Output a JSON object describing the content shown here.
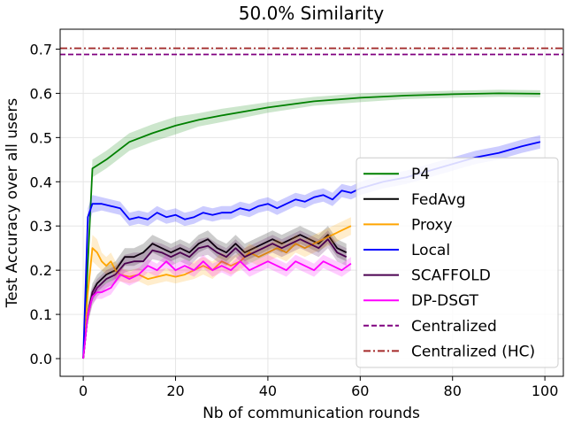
{
  "chart_data": {
    "type": "line",
    "title": "50.0% Similarity",
    "xlabel": "Nb of communication rounds",
    "ylabel": "Test Accuracy over all users",
    "xlim": [
      -5,
      104
    ],
    "ylim": [
      -0.04,
      0.745
    ],
    "xticks": [
      0,
      20,
      40,
      60,
      80,
      100
    ],
    "yticks": [
      0.0,
      0.1,
      0.2,
      0.3,
      0.4,
      0.5,
      0.6,
      0.7
    ],
    "ytick_labels": [
      "0.0",
      "0.1",
      "0.2",
      "0.3",
      "0.4",
      "0.5",
      "0.6",
      "0.7"
    ],
    "grid": true,
    "legend_position": "bottom-right",
    "series": [
      {
        "name": "P4",
        "color": "#008000",
        "style": "solid",
        "x": [
          0,
          2,
          5,
          10,
          15,
          20,
          25,
          30,
          40,
          50,
          60,
          70,
          80,
          90,
          99
        ],
        "values": [
          0.0,
          0.43,
          0.45,
          0.49,
          0.51,
          0.527,
          0.54,
          0.55,
          0.568,
          0.582,
          0.59,
          0.595,
          0.598,
          0.6,
          0.599
        ],
        "band": [
          0.0,
          0.02,
          0.02,
          0.02,
          0.02,
          0.02,
          0.015,
          0.015,
          0.012,
          0.01,
          0.01,
          0.008,
          0.008,
          0.008,
          0.008
        ]
      },
      {
        "name": "FedAvg",
        "color": "#000000",
        "style": "solid",
        "x": [
          0,
          1,
          2,
          3,
          5,
          7,
          9,
          11,
          13,
          15,
          17,
          19,
          21,
          23,
          25,
          27,
          29,
          31,
          33,
          35,
          37,
          39,
          41,
          43,
          45,
          47,
          49,
          51,
          53,
          55,
          57
        ],
        "values": [
          0.0,
          0.1,
          0.15,
          0.17,
          0.19,
          0.2,
          0.23,
          0.23,
          0.24,
          0.26,
          0.25,
          0.24,
          0.25,
          0.24,
          0.26,
          0.27,
          0.25,
          0.24,
          0.26,
          0.24,
          0.25,
          0.26,
          0.27,
          0.26,
          0.27,
          0.28,
          0.27,
          0.26,
          0.28,
          0.25,
          0.24
        ],
        "band": [
          0.0,
          0.02,
          0.02,
          0.02,
          0.02,
          0.02,
          0.02,
          0.02,
          0.02,
          0.02,
          0.02,
          0.02,
          0.02,
          0.02,
          0.02,
          0.02,
          0.02,
          0.02,
          0.02,
          0.02,
          0.02,
          0.02,
          0.02,
          0.02,
          0.02,
          0.02,
          0.02,
          0.02,
          0.02,
          0.02,
          0.02
        ]
      },
      {
        "name": "Proxy",
        "color": "#ffa500",
        "style": "solid",
        "x": [
          0,
          1,
          2,
          3,
          4,
          5,
          6,
          7,
          8,
          10,
          12,
          14,
          16,
          18,
          20,
          22,
          24,
          26,
          28,
          30,
          32,
          34,
          36,
          38,
          40,
          42,
          44,
          46,
          48,
          50,
          52,
          54,
          56,
          58
        ],
        "values": [
          0.0,
          0.15,
          0.25,
          0.24,
          0.22,
          0.21,
          0.22,
          0.2,
          0.19,
          0.185,
          0.19,
          0.18,
          0.185,
          0.19,
          0.185,
          0.19,
          0.2,
          0.21,
          0.2,
          0.22,
          0.21,
          0.22,
          0.24,
          0.23,
          0.24,
          0.25,
          0.24,
          0.26,
          0.25,
          0.26,
          0.27,
          0.28,
          0.29,
          0.3
        ],
        "band": [
          0.0,
          0.02,
          0.03,
          0.03,
          0.02,
          0.02,
          0.02,
          0.02,
          0.015,
          0.015,
          0.015,
          0.015,
          0.015,
          0.015,
          0.015,
          0.015,
          0.02,
          0.02,
          0.02,
          0.02,
          0.02,
          0.02,
          0.02,
          0.02,
          0.02,
          0.02,
          0.02,
          0.02,
          0.02,
          0.02,
          0.02,
          0.02,
          0.02,
          0.02
        ]
      },
      {
        "name": "Local",
        "color": "#0000ff",
        "style": "solid",
        "x": [
          0,
          1,
          2,
          4,
          6,
          8,
          10,
          12,
          14,
          16,
          18,
          20,
          22,
          24,
          26,
          28,
          30,
          32,
          34,
          36,
          38,
          40,
          42,
          44,
          46,
          48,
          50,
          52,
          54,
          56,
          58,
          60,
          65,
          70,
          75,
          80,
          85,
          90,
          95,
          99
        ],
        "values": [
          0.0,
          0.32,
          0.35,
          0.35,
          0.345,
          0.34,
          0.315,
          0.32,
          0.315,
          0.33,
          0.32,
          0.325,
          0.315,
          0.32,
          0.33,
          0.325,
          0.33,
          0.33,
          0.34,
          0.335,
          0.345,
          0.35,
          0.34,
          0.35,
          0.36,
          0.355,
          0.365,
          0.37,
          0.36,
          0.38,
          0.375,
          0.385,
          0.4,
          0.41,
          0.425,
          0.44,
          0.455,
          0.465,
          0.48,
          0.49
        ],
        "band": [
          0.0,
          0.02,
          0.02,
          0.015,
          0.015,
          0.015,
          0.015,
          0.015,
          0.015,
          0.015,
          0.015,
          0.015,
          0.015,
          0.015,
          0.015,
          0.015,
          0.015,
          0.015,
          0.015,
          0.015,
          0.015,
          0.015,
          0.015,
          0.015,
          0.015,
          0.015,
          0.015,
          0.015,
          0.015,
          0.015,
          0.015,
          0.015,
          0.015,
          0.015,
          0.015,
          0.015,
          0.015,
          0.015,
          0.015,
          0.015
        ]
      },
      {
        "name": "SCAFFOLD",
        "color": "#4b0050",
        "style": "solid",
        "x": [
          0,
          1,
          2,
          3,
          5,
          7,
          9,
          11,
          13,
          15,
          17,
          19,
          21,
          23,
          25,
          27,
          29,
          31,
          33,
          35,
          37,
          39,
          41,
          43,
          45,
          47,
          49,
          51,
          53,
          55,
          57
        ],
        "values": [
          0.0,
          0.1,
          0.14,
          0.16,
          0.18,
          0.19,
          0.215,
          0.22,
          0.22,
          0.245,
          0.24,
          0.23,
          0.24,
          0.23,
          0.25,
          0.255,
          0.24,
          0.23,
          0.25,
          0.23,
          0.24,
          0.25,
          0.26,
          0.25,
          0.26,
          0.27,
          0.26,
          0.25,
          0.27,
          0.24,
          0.23
        ],
        "band": [
          0.0,
          0.02,
          0.02,
          0.02,
          0.02,
          0.02,
          0.02,
          0.02,
          0.02,
          0.02,
          0.02,
          0.02,
          0.02,
          0.02,
          0.02,
          0.02,
          0.02,
          0.02,
          0.02,
          0.02,
          0.02,
          0.02,
          0.02,
          0.02,
          0.02,
          0.02,
          0.02,
          0.02,
          0.02,
          0.02,
          0.02
        ]
      },
      {
        "name": "DP-DSGT",
        "color": "#ff00ff",
        "style": "solid",
        "x": [
          0,
          1,
          2,
          3,
          4,
          6,
          8,
          10,
          12,
          14,
          16,
          18,
          20,
          22,
          24,
          26,
          28,
          30,
          32,
          34,
          36,
          38,
          40,
          42,
          44,
          46,
          48,
          50,
          52,
          54,
          56,
          58
        ],
        "values": [
          0.0,
          0.1,
          0.14,
          0.15,
          0.15,
          0.16,
          0.19,
          0.18,
          0.19,
          0.21,
          0.2,
          0.22,
          0.2,
          0.21,
          0.2,
          0.22,
          0.2,
          0.21,
          0.2,
          0.22,
          0.2,
          0.21,
          0.22,
          0.21,
          0.2,
          0.22,
          0.21,
          0.2,
          0.22,
          0.21,
          0.2,
          0.215
        ],
        "band": [
          0.0,
          0.015,
          0.015,
          0.015,
          0.015,
          0.015,
          0.015,
          0.015,
          0.015,
          0.015,
          0.015,
          0.015,
          0.015,
          0.015,
          0.015,
          0.015,
          0.015,
          0.015,
          0.015,
          0.015,
          0.015,
          0.015,
          0.015,
          0.015,
          0.015,
          0.015,
          0.015,
          0.015,
          0.015,
          0.015,
          0.015,
          0.015
        ]
      },
      {
        "name": "Centralized",
        "color": "#800080",
        "style": "dashed",
        "hline": 0.688
      },
      {
        "name": "Centralized (HC)",
        "color": "#a52a2a",
        "style": "dashdot",
        "hline": 0.702
      }
    ]
  }
}
